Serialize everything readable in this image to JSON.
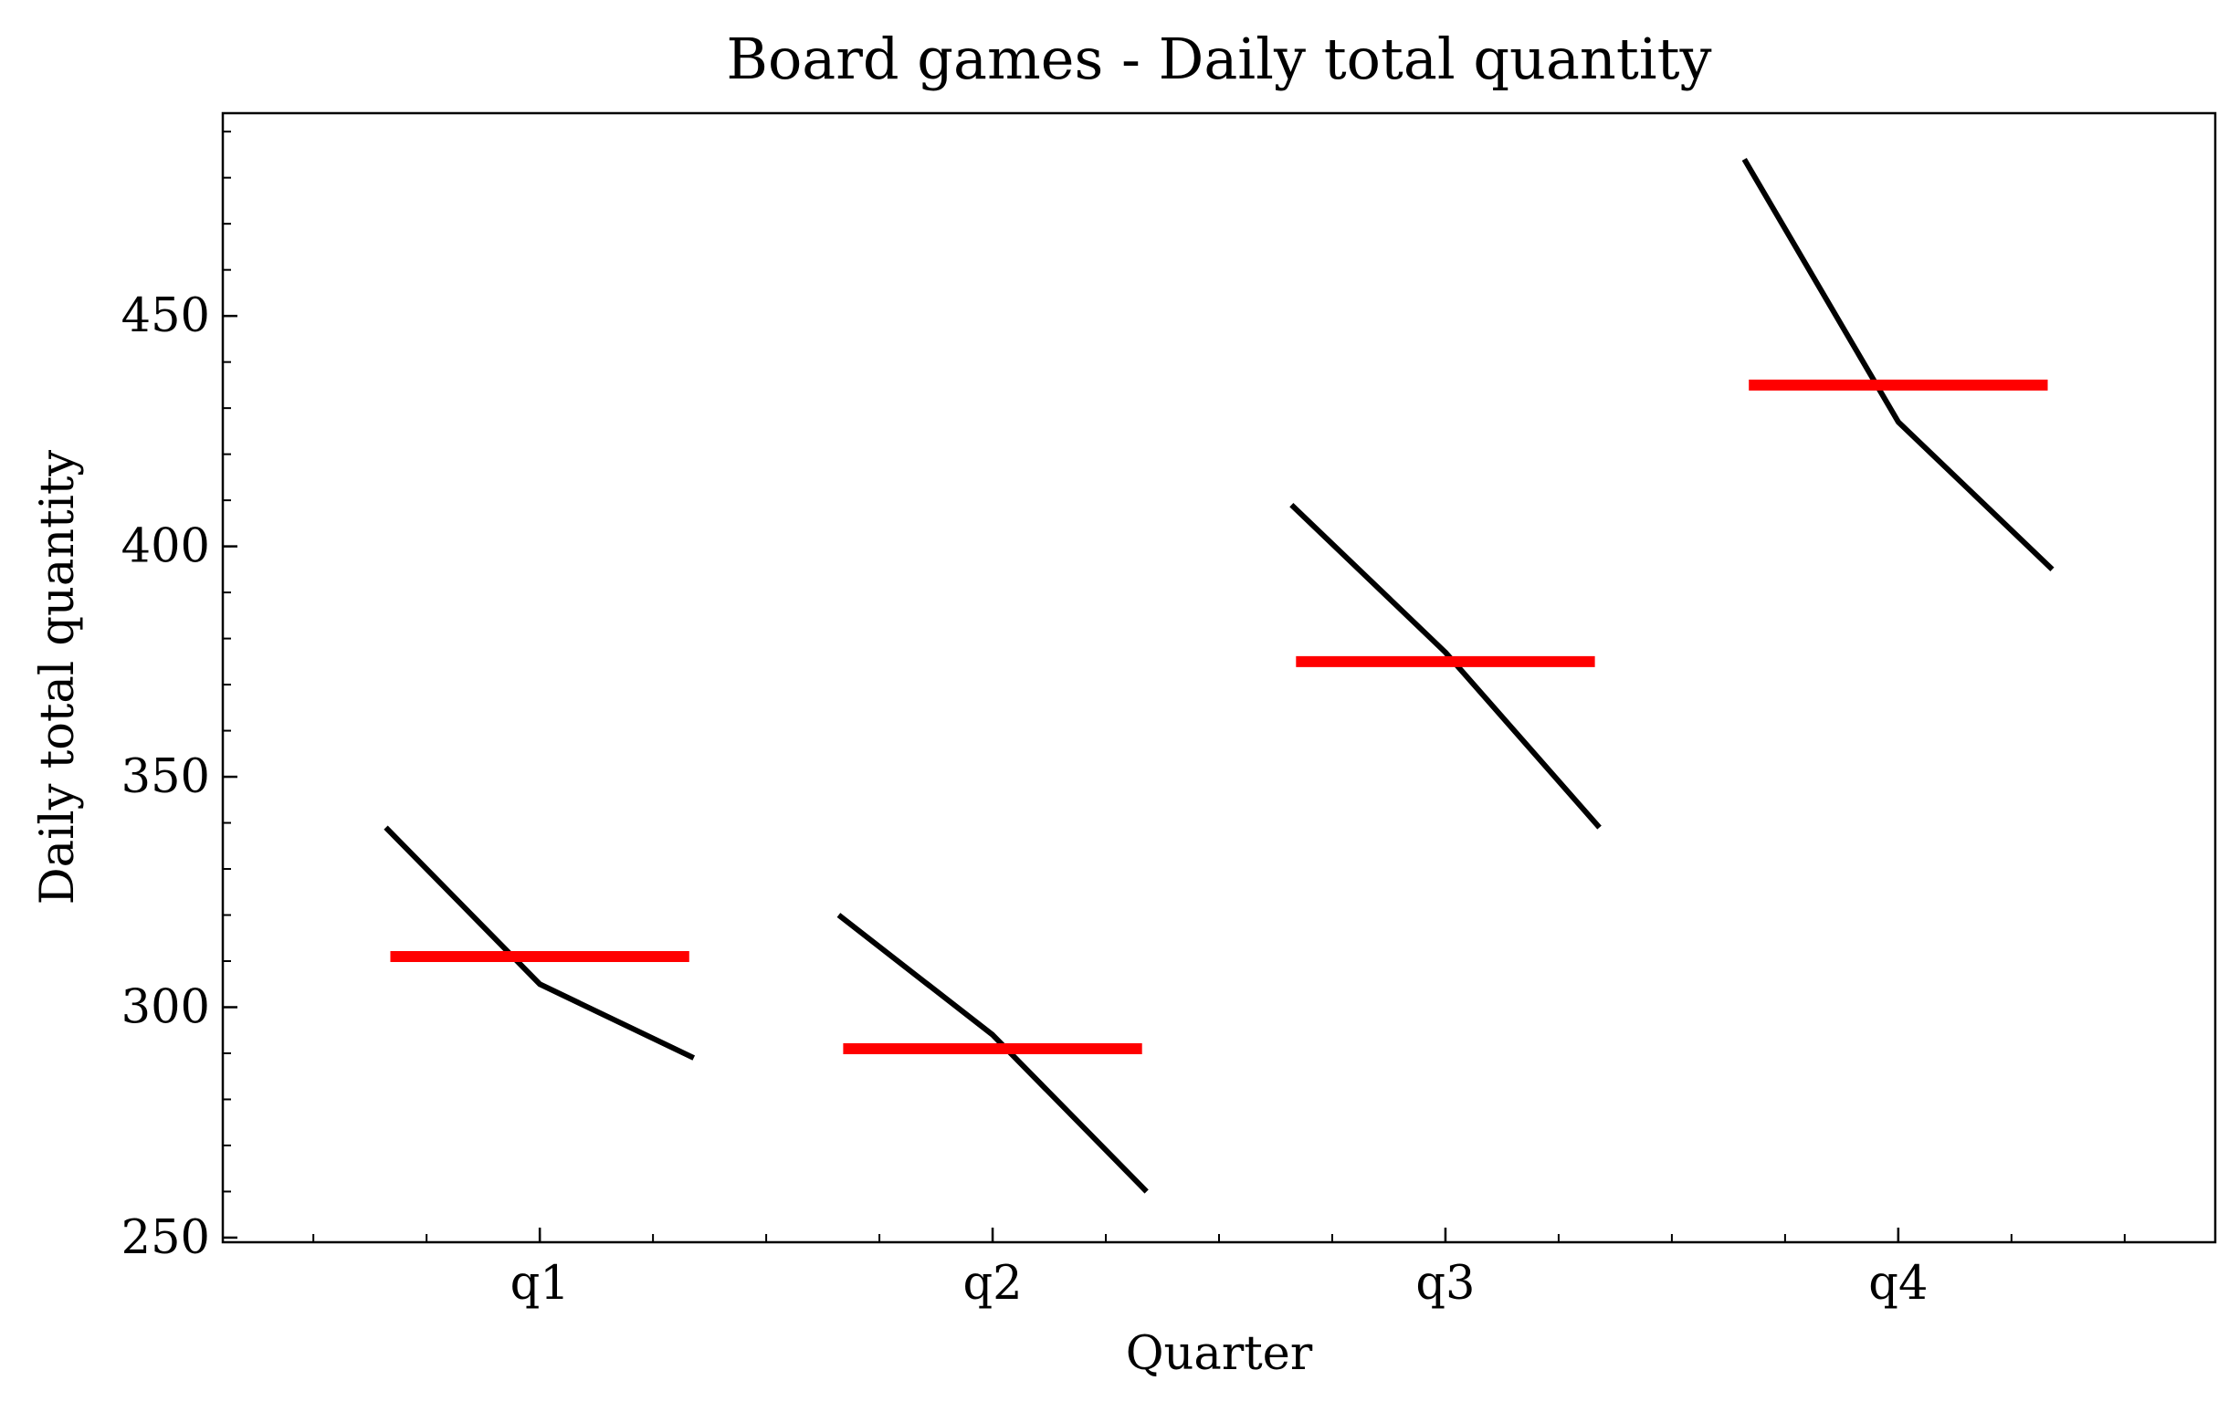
{
  "chart_data": {
    "type": "quarter",
    "title": "Board games - Daily total quantity",
    "x_label": "Quarter",
    "y_label": "Daily total quantity",
    "categories": [
      "q1",
      "q2",
      "q3",
      "q4"
    ],
    "groups": [
      {
        "values": [
          339,
          305,
          289
        ]
      },
      {
        "values": [
          320,
          294,
          260
        ]
      },
      {
        "values": [
          409,
          377,
          339
        ]
      },
      {
        "values": [
          484,
          427,
          395
        ]
      }
    ],
    "means": [
      311,
      291,
      375,
      435
    ],
    "line_color": "#000000",
    "mean_color": "#ff0000",
    "xlim": [
      -0.7,
      3.7
    ],
    "xticks": [
      0,
      1,
      2,
      3
    ],
    "x_minor_step": 0.25,
    "ylim": [
      249,
      494
    ],
    "yticks": [
      250,
      300,
      350,
      400,
      450
    ],
    "y_minor_step": 10
  }
}
